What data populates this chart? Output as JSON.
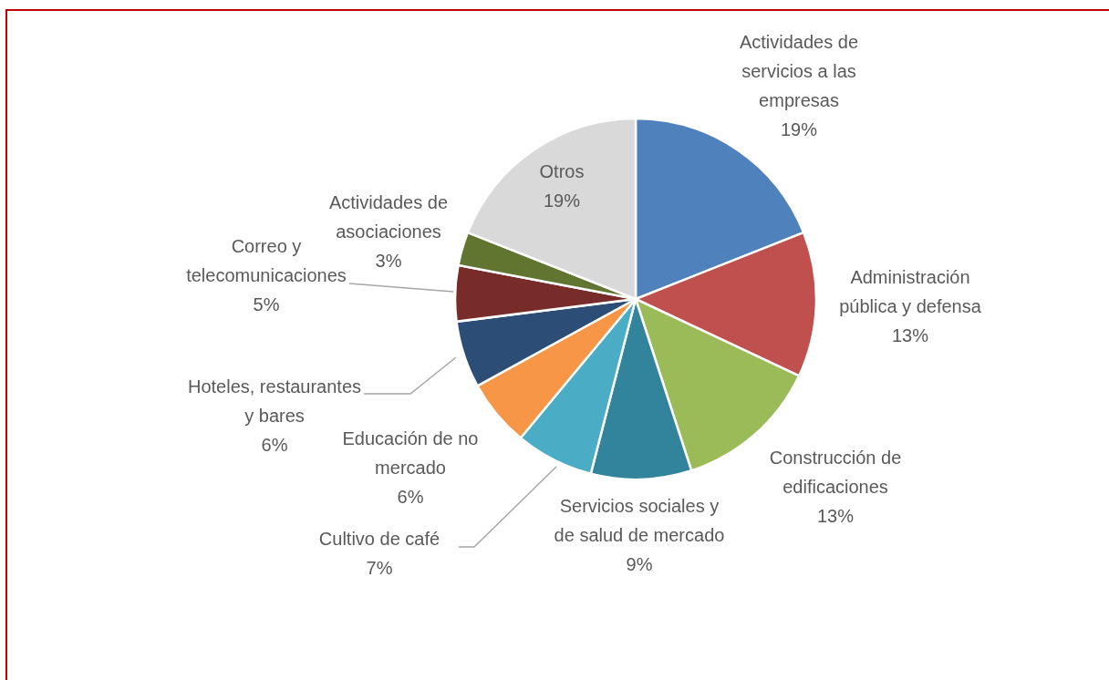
{
  "chart_data": {
    "type": "pie",
    "categories": [
      "Actividades de servicios a las empresas",
      "Administración pública y defensa",
      "Construcción de edificaciones",
      "Servicios sociales y de salud de mercado",
      "Cultivo de café",
      "Educación de no mercado",
      "Hoteles, restaurantes y bares",
      "Correo y telecomunicaciones",
      "Actividades de asociaciones",
      "Otros"
    ],
    "values": [
      19,
      13,
      13,
      9,
      7,
      6,
      6,
      5,
      3,
      19
    ],
    "value_labels": [
      "19%",
      "13%",
      "13%",
      "9%",
      "7%",
      "6%",
      "6%",
      "5%",
      "3%",
      "19%"
    ],
    "colors": [
      "#4f81bd",
      "#c0504d",
      "#9bbb59",
      "#31849b",
      "#4bacc6",
      "#f79646",
      "#2c4d75",
      "#772c2a",
      "#5f7530",
      "#d9d9d9"
    ],
    "legend": false
  }
}
